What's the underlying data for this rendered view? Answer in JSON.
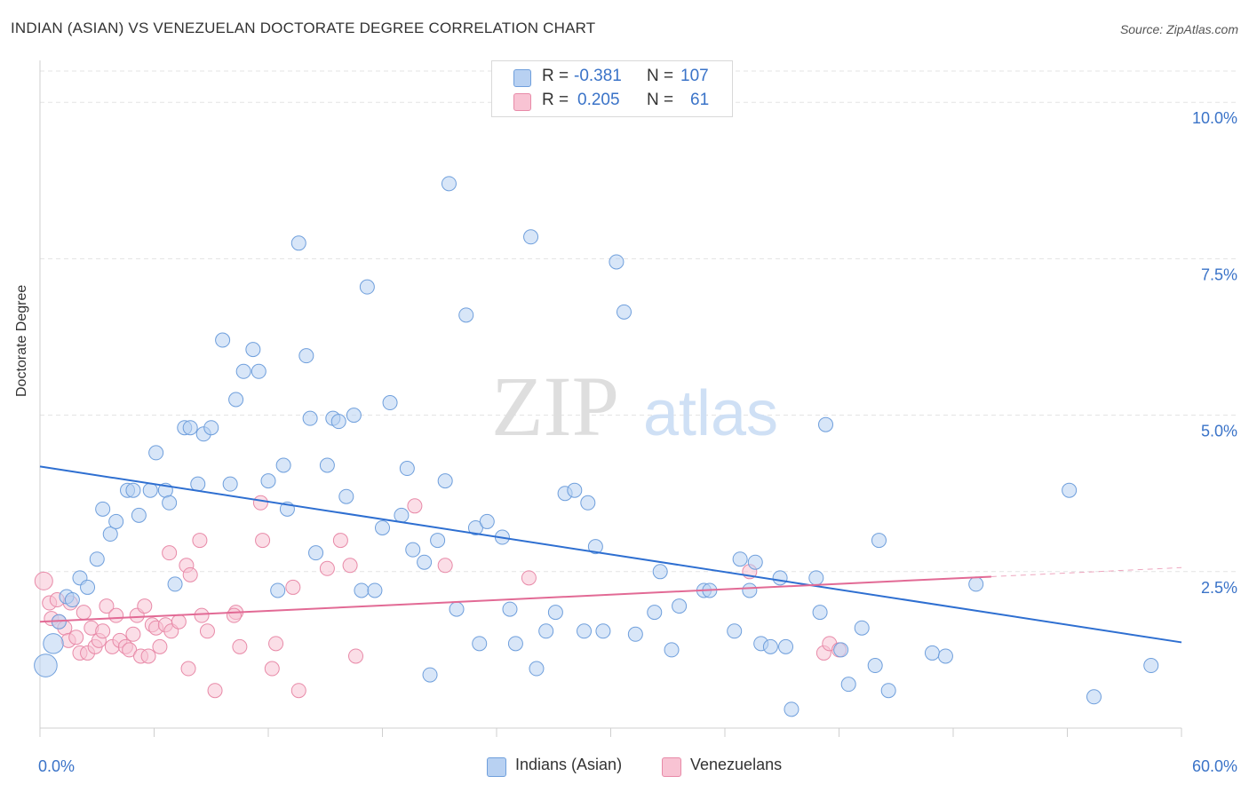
{
  "title": "INDIAN (ASIAN) VS VENEZUELAN DOCTORATE DEGREE CORRELATION CHART",
  "source": "Source: ZipAtlas.com",
  "watermark": {
    "zip": "ZIP",
    "atlas": "atlas"
  },
  "legend": {
    "rows": [
      {
        "r_label": "R = ",
        "r_value": "-0.381",
        "n_label": "N = ",
        "n_value": "107",
        "color": "#b8d1f2"
      },
      {
        "r_label": "R = ",
        "r_value": "0.205",
        "n_label": "N = ",
        "n_value": "61",
        "color": "#f8c3d3"
      }
    ]
  },
  "bottom_legend": [
    {
      "label": "Indians (Asian)",
      "color": "#b8d1f2"
    },
    {
      "label": "Venezuelans",
      "color": "#f8c3d3"
    }
  ],
  "chart_data": {
    "type": "scatter",
    "title": "INDIAN (ASIAN) VS VENEZUELAN DOCTORATE DEGREE CORRELATION CHART",
    "ylabel": "Doctorate Degree",
    "xlabel": "",
    "xlim": [
      0,
      60
    ],
    "ylim": [
      0,
      10.5
    ],
    "x_tick_labels": [
      "0.0%",
      "60.0%"
    ],
    "y_ticks": [
      2.5,
      5.0,
      7.5,
      10.0
    ],
    "y_tick_labels": [
      "2.5%",
      "5.0%",
      "7.5%",
      "10.0%"
    ],
    "grid": "horizontal dashed",
    "colors": {
      "blue_fill": "#b8d1f2",
      "blue_line": "#2e6fd1",
      "pink_fill": "#f8c3d3",
      "pink_line": "#e26a95",
      "tick_label": "#3a73c8"
    },
    "series": [
      {
        "name": "Indians (Asian)",
        "trend": {
          "x": [
            0,
            60
          ],
          "y": [
            4.18,
            1.37
          ]
        },
        "points": [
          [
            0.3,
            1.0,
            1.6
          ],
          [
            0.7,
            1.35,
            1.4
          ],
          [
            1.0,
            1.7,
            1.0
          ],
          [
            1.4,
            2.1,
            1.0
          ],
          [
            1.7,
            2.05,
            1.0
          ],
          [
            2.1,
            2.4,
            1.0
          ],
          [
            2.5,
            2.25,
            1.0
          ],
          [
            3.0,
            2.7,
            1.0
          ],
          [
            3.3,
            3.5,
            1.0
          ],
          [
            3.7,
            3.1,
            1.0
          ],
          [
            4.0,
            3.3,
            1.0
          ],
          [
            4.6,
            3.8,
            1.0
          ],
          [
            4.9,
            3.8,
            1.0
          ],
          [
            5.2,
            3.4,
            1.0
          ],
          [
            5.8,
            3.8,
            1.0
          ],
          [
            6.1,
            4.4,
            1.0
          ],
          [
            6.6,
            3.8,
            1.0
          ],
          [
            6.8,
            3.6,
            1.0
          ],
          [
            7.1,
            2.3,
            1.0
          ],
          [
            7.6,
            4.8,
            1.0
          ],
          [
            7.9,
            4.8,
            1.0
          ],
          [
            8.3,
            3.9,
            1.0
          ],
          [
            8.6,
            4.7,
            1.0
          ],
          [
            9.0,
            4.8,
            1.0
          ],
          [
            9.6,
            6.2,
            1.0
          ],
          [
            10.0,
            3.9,
            1.0
          ],
          [
            10.3,
            5.25,
            1.0
          ],
          [
            10.7,
            5.7,
            1.0
          ],
          [
            11.2,
            6.05,
            1.0
          ],
          [
            11.5,
            5.7,
            1.0
          ],
          [
            12.0,
            3.95,
            1.0
          ],
          [
            12.5,
            2.2,
            1.0
          ],
          [
            12.8,
            4.2,
            1.0
          ],
          [
            13.0,
            3.5,
            1.0
          ],
          [
            13.6,
            7.75,
            1.0
          ],
          [
            14.0,
            5.95,
            1.0
          ],
          [
            14.2,
            4.95,
            1.0
          ],
          [
            14.5,
            2.8,
            1.0
          ],
          [
            15.1,
            4.2,
            1.0
          ],
          [
            15.4,
            4.95,
            1.0
          ],
          [
            15.7,
            4.9,
            1.0
          ],
          [
            16.1,
            3.7,
            1.0
          ],
          [
            16.5,
            5.0,
            1.0
          ],
          [
            16.9,
            2.2,
            1.0
          ],
          [
            17.2,
            7.05,
            1.0
          ],
          [
            17.6,
            2.2,
            1.0
          ],
          [
            18.0,
            3.2,
            1.0
          ],
          [
            18.4,
            5.2,
            1.0
          ],
          [
            19.0,
            3.4,
            1.0
          ],
          [
            19.3,
            4.15,
            1.0
          ],
          [
            19.6,
            2.85,
            1.0
          ],
          [
            20.2,
            2.65,
            1.0
          ],
          [
            20.5,
            0.85,
            1.0
          ],
          [
            20.9,
            3.0,
            1.0
          ],
          [
            21.3,
            3.95,
            1.0
          ],
          [
            21.5,
            8.7,
            1.0
          ],
          [
            21.9,
            1.9,
            1.0
          ],
          [
            22.4,
            6.6,
            1.0
          ],
          [
            22.9,
            3.2,
            1.0
          ],
          [
            23.1,
            1.35,
            1.0
          ],
          [
            23.5,
            3.3,
            1.0
          ],
          [
            24.3,
            3.05,
            1.0
          ],
          [
            24.7,
            1.9,
            1.0
          ],
          [
            25.0,
            1.35,
            1.0
          ],
          [
            25.8,
            7.85,
            1.0
          ],
          [
            26.1,
            0.95,
            1.0
          ],
          [
            26.6,
            1.55,
            1.0
          ],
          [
            27.1,
            1.85,
            1.0
          ],
          [
            27.6,
            3.75,
            1.0
          ],
          [
            28.1,
            3.8,
            1.0
          ],
          [
            28.6,
            1.55,
            1.0
          ],
          [
            28.8,
            3.6,
            1.0
          ],
          [
            29.2,
            2.9,
            1.0
          ],
          [
            29.6,
            1.55,
            1.0
          ],
          [
            30.3,
            7.45,
            1.0
          ],
          [
            30.7,
            6.65,
            1.0
          ],
          [
            31.3,
            1.5,
            1.0
          ],
          [
            32.3,
            1.85,
            1.0
          ],
          [
            32.6,
            2.5,
            1.0
          ],
          [
            33.2,
            1.25,
            1.0
          ],
          [
            33.6,
            1.95,
            1.0
          ],
          [
            34.9,
            2.2,
            1.0
          ],
          [
            35.2,
            2.2,
            1.0
          ],
          [
            36.5,
            1.55,
            1.0
          ],
          [
            36.8,
            2.7,
            1.0
          ],
          [
            37.3,
            2.2,
            1.0
          ],
          [
            37.6,
            2.65,
            1.0
          ],
          [
            37.9,
            1.35,
            1.0
          ],
          [
            38.4,
            1.3,
            1.0
          ],
          [
            38.9,
            2.4,
            1.0
          ],
          [
            39.2,
            1.3,
            1.0
          ],
          [
            39.5,
            0.3,
            1.0
          ],
          [
            40.8,
            2.4,
            1.0
          ],
          [
            41.0,
            1.85,
            1.0
          ],
          [
            41.3,
            4.85,
            1.0
          ],
          [
            42.1,
            1.25,
            1.0
          ],
          [
            42.5,
            0.7,
            1.0
          ],
          [
            43.2,
            1.6,
            1.0
          ],
          [
            43.9,
            1.0,
            1.0
          ],
          [
            44.1,
            3.0,
            1.0
          ],
          [
            44.6,
            0.6,
            1.0
          ],
          [
            46.9,
            1.2,
            1.0
          ],
          [
            47.6,
            1.15,
            1.0
          ],
          [
            49.2,
            2.3,
            1.0
          ],
          [
            54.1,
            3.8,
            1.0
          ],
          [
            55.4,
            0.5,
            1.0
          ],
          [
            58.4,
            1.0,
            1.0
          ]
        ]
      },
      {
        "name": "Venezuelans",
        "trend": {
          "x": [
            0,
            50
          ],
          "y": [
            1.7,
            2.42
          ]
        },
        "points": [
          [
            0.2,
            2.35,
            1.25
          ],
          [
            0.5,
            2.0,
            1.0
          ],
          [
            0.6,
            1.75,
            1.0
          ],
          [
            0.9,
            2.05,
            1.0
          ],
          [
            1.0,
            1.7,
            1.0
          ],
          [
            1.3,
            1.6,
            1.0
          ],
          [
            1.5,
            1.4,
            1.0
          ],
          [
            1.6,
            2.0,
            1.0
          ],
          [
            1.9,
            1.45,
            1.0
          ],
          [
            2.1,
            1.2,
            1.0
          ],
          [
            2.3,
            1.85,
            1.0
          ],
          [
            2.5,
            1.2,
            1.0
          ],
          [
            2.7,
            1.6,
            1.0
          ],
          [
            2.9,
            1.3,
            1.0
          ],
          [
            3.1,
            1.4,
            1.0
          ],
          [
            3.3,
            1.55,
            1.0
          ],
          [
            3.5,
            1.95,
            1.0
          ],
          [
            3.8,
            1.3,
            1.0
          ],
          [
            4.0,
            1.8,
            1.0
          ],
          [
            4.2,
            1.4,
            1.0
          ],
          [
            4.5,
            1.3,
            1.0
          ],
          [
            4.7,
            1.25,
            1.0
          ],
          [
            4.9,
            1.5,
            1.0
          ],
          [
            5.1,
            1.8,
            1.0
          ],
          [
            5.3,
            1.15,
            1.0
          ],
          [
            5.5,
            1.95,
            1.0
          ],
          [
            5.7,
            1.15,
            1.0
          ],
          [
            5.9,
            1.65,
            1.0
          ],
          [
            6.1,
            1.6,
            1.0
          ],
          [
            6.3,
            1.3,
            1.0
          ],
          [
            6.6,
            1.65,
            1.0
          ],
          [
            6.8,
            2.8,
            1.0
          ],
          [
            6.9,
            1.55,
            1.0
          ],
          [
            7.3,
            1.7,
            1.0
          ],
          [
            7.7,
            2.6,
            1.0
          ],
          [
            7.8,
            0.95,
            1.0
          ],
          [
            7.9,
            2.45,
            1.0
          ],
          [
            8.4,
            3.0,
            1.0
          ],
          [
            8.5,
            1.8,
            1.0
          ],
          [
            8.8,
            1.55,
            1.0
          ],
          [
            9.2,
            0.6,
            1.0
          ],
          [
            10.5,
            1.3,
            1.0
          ],
          [
            10.3,
            1.85,
            1.0
          ],
          [
            10.2,
            1.8,
            1.0
          ],
          [
            11.7,
            3.0,
            1.0
          ],
          [
            11.6,
            3.6,
            1.0
          ],
          [
            12.2,
            0.95,
            1.0
          ],
          [
            12.4,
            1.35,
            1.0
          ],
          [
            13.3,
            2.25,
            1.0
          ],
          [
            13.6,
            0.6,
            1.0
          ],
          [
            15.1,
            2.55,
            1.0
          ],
          [
            15.8,
            3.0,
            1.0
          ],
          [
            16.3,
            2.6,
            1.0
          ],
          [
            16.6,
            1.15,
            1.0
          ],
          [
            19.7,
            3.55,
            1.0
          ],
          [
            21.3,
            2.6,
            1.0
          ],
          [
            25.7,
            2.4,
            1.0
          ],
          [
            37.3,
            2.5,
            1.0
          ],
          [
            41.2,
            1.2,
            1.0
          ],
          [
            41.5,
            1.35,
            1.0
          ],
          [
            42.0,
            1.25,
            1.0
          ]
        ]
      }
    ]
  }
}
